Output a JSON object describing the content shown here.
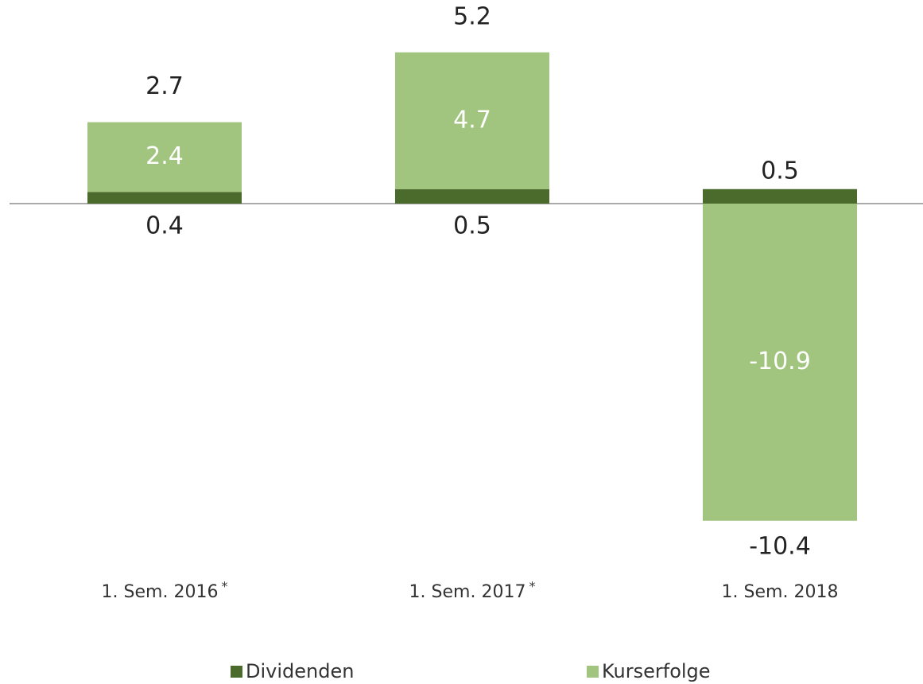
{
  "chart_data": {
    "type": "stacked_bar",
    "categories": [
      "1. Sem. 2016",
      "1. Sem. 2017",
      "1. Sem. 2018"
    ],
    "category_marks": [
      "*",
      "*",
      null
    ],
    "series": [
      {
        "name": "Dividenden",
        "color": "#4a6b2c",
        "values": [
          0.4,
          0.5,
          0.5
        ]
      },
      {
        "name": "Kurserfolge",
        "color": "#a1c57e",
        "values": [
          2.4,
          4.7,
          -10.9
        ]
      }
    ],
    "totals": [
      2.7,
      5.2,
      -10.4
    ],
    "ylim": [
      -12,
      7
    ]
  }
}
